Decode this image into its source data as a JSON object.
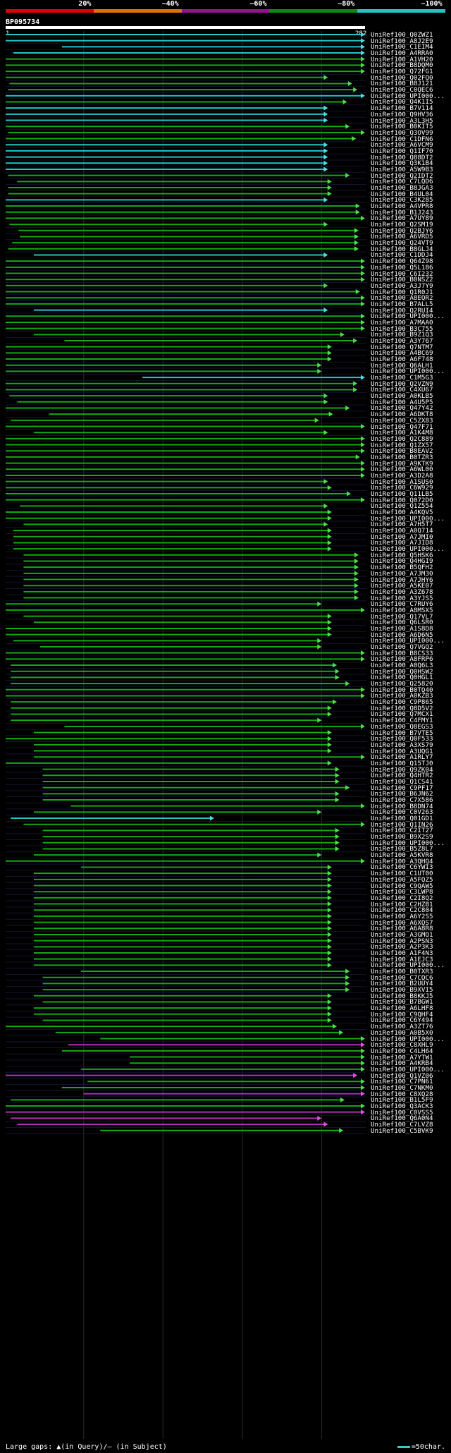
{
  "legend": {
    "segments": [
      {
        "label": "20%",
        "color": "#e00000"
      },
      {
        "label": "~40%",
        "color": "#e07000"
      },
      {
        "label": "~60%",
        "color": "#8e158e"
      },
      {
        "label": "~80%",
        "color": "#118811"
      },
      {
        "label": "~100%",
        "color": "#22c5c5"
      }
    ]
  },
  "query": {
    "id": "BP095734",
    "start": "1",
    "end": "282",
    "length": 282
  },
  "footer": {
    "gaps_text": "Large gaps: ▲(in Query)/– (in Subject)",
    "scale_text": "=50char."
  },
  "hits": [
    {
      "id": "UniRef100_Q0ZWZ1",
      "s": 1,
      "e": 282,
      "c": "c"
    },
    {
      "id": "UniRef100_A8J2E9",
      "s": 1,
      "e": 282,
      "c": "c"
    },
    {
      "id": "UniRef100_C1EIM4",
      "s": 45,
      "e": 282,
      "c": "c"
    },
    {
      "id": "UniRef100_A4RRA0",
      "s": 7,
      "e": 282,
      "c": "c"
    },
    {
      "id": "UniRef100_A1VH20",
      "s": 1,
      "e": 282,
      "c": "g"
    },
    {
      "id": "UniRef100_B8DQM0",
      "s": 1,
      "e": 282,
      "c": "g"
    },
    {
      "id": "UniRef100_Q72FG1",
      "s": 1,
      "e": 282,
      "c": "g"
    },
    {
      "id": "UniRef100_Q02FQ0",
      "s": 1,
      "e": 253,
      "c": "g"
    },
    {
      "id": "UniRef100_B8J121",
      "s": 4,
      "e": 272,
      "c": "g"
    },
    {
      "id": "UniRef100_C0QEC6",
      "s": 3,
      "e": 276,
      "c": "g"
    },
    {
      "id": "UniRef100_UPI000...",
      "s": 1,
      "e": 282,
      "c": "c"
    },
    {
      "id": "UniRef100_Q4K1I5",
      "s": 1,
      "e": 268,
      "c": "g"
    },
    {
      "id": "UniRef100_B7V114",
      "s": 1,
      "e": 253,
      "c": "c"
    },
    {
      "id": "UniRef100_Q9HV36",
      "s": 1,
      "e": 253,
      "c": "c"
    },
    {
      "id": "UniRef100_A3L3H5",
      "s": 1,
      "e": 253,
      "c": "c"
    },
    {
      "id": "UniRef100_B0KIT5",
      "s": 1,
      "e": 270,
      "c": "g"
    },
    {
      "id": "UniRef100_Q3OV99",
      "s": 3,
      "e": 282,
      "c": "g"
    },
    {
      "id": "UniRef100_C1DFN6",
      "s": 1,
      "e": 275,
      "c": "g"
    },
    {
      "id": "UniRef100_A6VCM9",
      "s": 1,
      "e": 253,
      "c": "c"
    },
    {
      "id": "UniRef100_Q1IF70",
      "s": 1,
      "e": 253,
      "c": "c"
    },
    {
      "id": "UniRef100_Q88DT2",
      "s": 1,
      "e": 253,
      "c": "c"
    },
    {
      "id": "UniRef100_Q3K1B4",
      "s": 1,
      "e": 253,
      "c": "c"
    },
    {
      "id": "UniRef100_A5W9B3",
      "s": 1,
      "e": 253,
      "c": "c"
    },
    {
      "id": "UniRef100_Q2IDT2",
      "s": 3,
      "e": 270,
      "c": "g"
    },
    {
      "id": "UniRef100_C7LQD6",
      "s": 10,
      "e": 256,
      "c": "g"
    },
    {
      "id": "UniRef100_B8JGA3",
      "s": 3,
      "e": 256,
      "c": "g"
    },
    {
      "id": "UniRef100_B4UL04",
      "s": 3,
      "e": 256,
      "c": "g"
    },
    {
      "id": "UniRef100_C3K285",
      "s": 1,
      "e": 253,
      "c": "c"
    },
    {
      "id": "UniRef100_A4VPR8",
      "s": 1,
      "e": 278,
      "c": "g"
    },
    {
      "id": "UniRef100_B1J243",
      "s": 1,
      "e": 278,
      "c": "g"
    },
    {
      "id": "UniRef100_A7UY89",
      "s": 1,
      "e": 282,
      "c": "g"
    },
    {
      "id": "UniRef100_Q2SM19",
      "s": 4,
      "e": 253,
      "c": "g"
    },
    {
      "id": "UniRef100_Q2BJY6",
      "s": 11,
      "e": 277,
      "c": "g"
    },
    {
      "id": "UniRef100_A6VRD5",
      "s": 12,
      "e": 277,
      "c": "g"
    },
    {
      "id": "UniRef100_Q24VT9",
      "s": 6,
      "e": 277,
      "c": "g"
    },
    {
      "id": "UniRef100_B8GLJ4",
      "s": 3,
      "e": 277,
      "c": "g"
    },
    {
      "id": "UniRef100_C1DDJ4",
      "s": 23,
      "e": 253,
      "c": "c"
    },
    {
      "id": "UniRef100_Q64Z98",
      "s": 1,
      "e": 282,
      "c": "g"
    },
    {
      "id": "UniRef100_Q5L186",
      "s": 1,
      "e": 282,
      "c": "g"
    },
    {
      "id": "UniRef100_C6I232",
      "s": 1,
      "e": 282,
      "c": "g"
    },
    {
      "id": "UniRef100_B0NSZ2",
      "s": 1,
      "e": 282,
      "c": "g"
    },
    {
      "id": "UniRef100_A3J7Y9",
      "s": 1,
      "e": 253,
      "c": "g"
    },
    {
      "id": "UniRef100_Q1R0J1",
      "s": 1,
      "e": 278,
      "c": "g"
    },
    {
      "id": "UniRef100_A8EQR2",
      "s": 1,
      "e": 282,
      "c": "g"
    },
    {
      "id": "UniRef100_B7ALL5",
      "s": 1,
      "e": 282,
      "c": "g"
    },
    {
      "id": "UniRef100_Q2RUI4",
      "s": 23,
      "e": 253,
      "c": "c"
    },
    {
      "id": "UniRef100_UPI000...",
      "s": 1,
      "e": 282,
      "c": "g"
    },
    {
      "id": "UniRef100_A7MAA0",
      "s": 1,
      "e": 282,
      "c": "g"
    },
    {
      "id": "UniRef100_B3C755",
      "s": 1,
      "e": 282,
      "c": "g"
    },
    {
      "id": "UniRef100_B9Z1Q3",
      "s": 23,
      "e": 266,
      "c": "g"
    },
    {
      "id": "UniRef100_A3Y767",
      "s": 47,
      "e": 276,
      "c": "g"
    },
    {
      "id": "UniRef100_Q7NTM7",
      "s": 1,
      "e": 256,
      "c": "g"
    },
    {
      "id": "UniRef100_A4BC69",
      "s": 1,
      "e": 256,
      "c": "g"
    },
    {
      "id": "UniRef100_A6F748",
      "s": 1,
      "e": 256,
      "c": "g"
    },
    {
      "id": "UniRef100_Q6ALH1",
      "s": 1,
      "e": 248,
      "c": "g"
    },
    {
      "id": "UniRef100_UPI000...",
      "s": 1,
      "e": 248,
      "c": "g"
    },
    {
      "id": "UniRef100_C1M5G3",
      "s": 108,
      "e": 282,
      "c": "c"
    },
    {
      "id": "UniRef100_Q2VZN9",
      "s": 1,
      "e": 276,
      "c": "g"
    },
    {
      "id": "UniRef100_C4XU67",
      "s": 1,
      "e": 276,
      "c": "g"
    },
    {
      "id": "UniRef100_A0KLB5",
      "s": 4,
      "e": 253,
      "c": "g"
    },
    {
      "id": "UniRef100_A4U5P5",
      "s": 10,
      "e": 253,
      "c": "g"
    },
    {
      "id": "UniRef100_Q47Y42",
      "s": 1,
      "e": 270,
      "c": "g"
    },
    {
      "id": "UniRef100_A6DKT8",
      "s": 35,
      "e": 257,
      "c": "g"
    },
    {
      "id": "UniRef100_C5ZX83",
      "s": 5,
      "e": 246,
      "c": "g"
    },
    {
      "id": "UniRef100_Q47F71",
      "s": 1,
      "e": 282,
      "c": "g"
    },
    {
      "id": "UniRef100_A1K4M8",
      "s": 23,
      "e": 253,
      "c": "g"
    },
    {
      "id": "UniRef100_Q2C889",
      "s": 1,
      "e": 282,
      "c": "g"
    },
    {
      "id": "UniRef100_Q1ZX57",
      "s": 1,
      "e": 282,
      "c": "g"
    },
    {
      "id": "UniRef100_B8EAV2",
      "s": 1,
      "e": 282,
      "c": "g"
    },
    {
      "id": "UniRef100_B0TZR3",
      "s": 1,
      "e": 278,
      "c": "g"
    },
    {
      "id": "UniRef100_A9KTK9",
      "s": 1,
      "e": 282,
      "c": "g"
    },
    {
      "id": "UniRef100_A6WL00",
      "s": 1,
      "e": 282,
      "c": "g"
    },
    {
      "id": "UniRef100_A3D2A8",
      "s": 1,
      "e": 282,
      "c": "g"
    },
    {
      "id": "UniRef100_A1SUS0",
      "s": 1,
      "e": 253,
      "c": "g"
    },
    {
      "id": "UniRef100_C6W929",
      "s": 1,
      "e": 256,
      "c": "g"
    },
    {
      "id": "UniRef100_Q11LB5",
      "s": 1,
      "e": 271,
      "c": "g"
    },
    {
      "id": "UniRef100_Q072D0",
      "s": 1,
      "e": 282,
      "c": "g"
    },
    {
      "id": "UniRef100_Q1Z554",
      "s": 12,
      "e": 253,
      "c": "g"
    },
    {
      "id": "UniRef100_A4KQV5",
      "s": 1,
      "e": 256,
      "c": "g"
    },
    {
      "id": "UniRef100_UPI000...",
      "s": 1,
      "e": 256,
      "c": "g"
    },
    {
      "id": "UniRef100_A7H5T7",
      "s": 15,
      "e": 253,
      "c": "g"
    },
    {
      "id": "UniRef100_A0Q714",
      "s": 7,
      "e": 256,
      "c": "g"
    },
    {
      "id": "UniRef100_A7JMI0",
      "s": 7,
      "e": 256,
      "c": "g"
    },
    {
      "id": "UniRef100_A7JID8",
      "s": 7,
      "e": 256,
      "c": "g"
    },
    {
      "id": "UniRef100_UPI000...",
      "s": 7,
      "e": 256,
      "c": "g"
    },
    {
      "id": "UniRef100_Q5HSK6",
      "s": 15,
      "e": 277,
      "c": "g"
    },
    {
      "id": "UniRef100_Q4HGI9",
      "s": 15,
      "e": 277,
      "c": "g"
    },
    {
      "id": "UniRef100_B5QFH2",
      "s": 15,
      "e": 277,
      "c": "g"
    },
    {
      "id": "UniRef100_A7JM30",
      "s": 15,
      "e": 277,
      "c": "g"
    },
    {
      "id": "UniRef100_A7JHY6",
      "s": 15,
      "e": 277,
      "c": "g"
    },
    {
      "id": "UniRef100_A5KE07",
      "s": 15,
      "e": 277,
      "c": "g"
    },
    {
      "id": "UniRef100_A3Z678",
      "s": 15,
      "e": 277,
      "c": "g"
    },
    {
      "id": "UniRef100_A3YJS5",
      "s": 15,
      "e": 277,
      "c": "g"
    },
    {
      "id": "UniRef100_C7RUY6",
      "s": 1,
      "e": 248,
      "c": "g"
    },
    {
      "id": "UniRef100_A8MSX5",
      "s": 1,
      "e": 282,
      "c": "g"
    },
    {
      "id": "UniRef100_Q17VL7",
      "s": 15,
      "e": 256,
      "c": "g"
    },
    {
      "id": "UniRef100_Q6LSR0",
      "s": 23,
      "e": 256,
      "c": "g"
    },
    {
      "id": "UniRef100_A1S8D8",
      "s": 1,
      "e": 256,
      "c": "g"
    },
    {
      "id": "UniRef100_A6D6N5",
      "s": 1,
      "e": 256,
      "c": "g"
    },
    {
      "id": "UniRef100_UPI000...",
      "s": 7,
      "e": 248,
      "c": "g"
    },
    {
      "id": "UniRef100_Q7VGQ2",
      "s": 28,
      "e": 248,
      "c": "g"
    },
    {
      "id": "UniRef100_B8CS33",
      "s": 1,
      "e": 282,
      "c": "g"
    },
    {
      "id": "UniRef100_A8FRP6",
      "s": 1,
      "e": 282,
      "c": "g"
    },
    {
      "id": "UniRef100_A0Q6L3",
      "s": 5,
      "e": 260,
      "c": "g"
    },
    {
      "id": "UniRef100_Q0HSW2",
      "s": 5,
      "e": 262,
      "c": "g"
    },
    {
      "id": "UniRef100_Q0HGL1",
      "s": 5,
      "e": 262,
      "c": "g"
    },
    {
      "id": "UniRef100_Q25820",
      "s": 5,
      "e": 270,
      "c": "g"
    },
    {
      "id": "UniRef100_B0TQ40",
      "s": 1,
      "e": 282,
      "c": "g"
    },
    {
      "id": "UniRef100_A0KZB3",
      "s": 1,
      "e": 282,
      "c": "g"
    },
    {
      "id": "UniRef100_C9P865",
      "s": 5,
      "e": 260,
      "c": "g"
    },
    {
      "id": "UniRef100_Q8D5V2",
      "s": 5,
      "e": 256,
      "c": "g"
    },
    {
      "id": "UniRef100_Q7MCX1",
      "s": 5,
      "e": 256,
      "c": "g"
    },
    {
      "id": "UniRef100_C4FMY1",
      "s": 5,
      "e": 248,
      "c": "g"
    },
    {
      "id": "UniRef100_Q8EGS3",
      "s": 47,
      "e": 282,
      "c": "g"
    },
    {
      "id": "UniRef100_B7VTE5",
      "s": 23,
      "e": 256,
      "c": "g"
    },
    {
      "id": "UniRef100_Q0F533",
      "s": 1,
      "e": 256,
      "c": "g"
    },
    {
      "id": "UniRef100_A3XS79",
      "s": 23,
      "e": 256,
      "c": "g"
    },
    {
      "id": "UniRef100_A3UQG1",
      "s": 23,
      "e": 256,
      "c": "g"
    },
    {
      "id": "UniRef100_A1RLY7",
      "s": 23,
      "e": 282,
      "c": "g"
    },
    {
      "id": "UniRef100_Q15TJ0",
      "s": 1,
      "e": 256,
      "c": "g"
    },
    {
      "id": "UniRef100_Q9ZK04",
      "s": 30,
      "e": 262,
      "c": "g"
    },
    {
      "id": "UniRef100_Q4HTR2",
      "s": 30,
      "e": 262,
      "c": "g"
    },
    {
      "id": "UniRef100_Q1CS41",
      "s": 30,
      "e": 262,
      "c": "g"
    },
    {
      "id": "UniRef100_C9PF17",
      "s": 30,
      "e": 270,
      "c": "g"
    },
    {
      "id": "UniRef100_B6JN62",
      "s": 30,
      "e": 262,
      "c": "g"
    },
    {
      "id": "UniRef100_C7X586",
      "s": 30,
      "e": 262,
      "c": "g"
    },
    {
      "id": "UniRef100_B8DN74",
      "s": 52,
      "e": 282,
      "c": "g"
    },
    {
      "id": "UniRef100_C0V263",
      "s": 23,
      "e": 248,
      "c": "g"
    },
    {
      "id": "UniRef100_Q01GD1",
      "s": 5,
      "e": 164,
      "c": "c"
    },
    {
      "id": "UniRef100_Q1IN26",
      "s": 15,
      "e": 282,
      "c": "g"
    },
    {
      "id": "UniRef100_C2IT27",
      "s": 30,
      "e": 262,
      "c": "g"
    },
    {
      "id": "UniRef100_B9X2S9",
      "s": 30,
      "e": 262,
      "c": "g"
    },
    {
      "id": "UniRef100_UPI000...",
      "s": 30,
      "e": 262,
      "c": "g"
    },
    {
      "id": "UniRef100_B5Z8L7",
      "s": 30,
      "e": 262,
      "c": "g"
    },
    {
      "id": "UniRef100_A5KVR8",
      "s": 23,
      "e": 248,
      "c": "g"
    },
    {
      "id": "UniRef100_A3QHQ4",
      "s": 1,
      "e": 282,
      "c": "g"
    },
    {
      "id": "UniRef100_C6YWI3",
      "s": 60,
      "e": 256,
      "c": "g"
    },
    {
      "id": "UniRef100_C1UT00",
      "s": 23,
      "e": 256,
      "c": "g"
    },
    {
      "id": "UniRef100_A5FQZ5",
      "s": 23,
      "e": 256,
      "c": "g"
    },
    {
      "id": "UniRef100_C9QAW5",
      "s": 23,
      "e": 256,
      "c": "g"
    },
    {
      "id": "UniRef100_C3LWP8",
      "s": 23,
      "e": 256,
      "c": "g"
    },
    {
      "id": "UniRef100_C2I8Q2",
      "s": 23,
      "e": 256,
      "c": "g"
    },
    {
      "id": "UniRef100_C2HZB1",
      "s": 23,
      "e": 256,
      "c": "g"
    },
    {
      "id": "UniRef100_C2C804",
      "s": 23,
      "e": 256,
      "c": "g"
    },
    {
      "id": "UniRef100_A6Y2S5",
      "s": 23,
      "e": 256,
      "c": "g"
    },
    {
      "id": "UniRef100_A6XQS7",
      "s": 23,
      "e": 256,
      "c": "g"
    },
    {
      "id": "UniRef100_A6A8R8",
      "s": 23,
      "e": 256,
      "c": "g"
    },
    {
      "id": "UniRef100_A3GMQ1",
      "s": 23,
      "e": 256,
      "c": "g"
    },
    {
      "id": "UniRef100_A2PSN3",
      "s": 23,
      "e": 256,
      "c": "g"
    },
    {
      "id": "UniRef100_A2P3K3",
      "s": 23,
      "e": 256,
      "c": "g"
    },
    {
      "id": "UniRef100_A1F4N3",
      "s": 23,
      "e": 256,
      "c": "g"
    },
    {
      "id": "UniRef100_A1EJC3",
      "s": 23,
      "e": 256,
      "c": "g"
    },
    {
      "id": "UniRef100_UPI000...",
      "s": 23,
      "e": 256,
      "c": "g"
    },
    {
      "id": "UniRef100_B0TXR3",
      "s": 60,
      "e": 270,
      "c": "g"
    },
    {
      "id": "UniRef100_C7CQC6",
      "s": 30,
      "e": 270,
      "c": "g"
    },
    {
      "id": "UniRef100_B2UUY4",
      "s": 30,
      "e": 270,
      "c": "g"
    },
    {
      "id": "UniRef100_B9XVI5",
      "s": 30,
      "e": 270,
      "c": "g"
    },
    {
      "id": "UniRef100_B8KKJ5",
      "s": 23,
      "e": 256,
      "c": "g"
    },
    {
      "id": "UniRef100_B7BGW1",
      "s": 30,
      "e": 256,
      "c": "g"
    },
    {
      "id": "UniRef100_A6LHF8",
      "s": 23,
      "e": 256,
      "c": "g"
    },
    {
      "id": "UniRef100_C9QHF4",
      "s": 23,
      "e": 256,
      "c": "g"
    },
    {
      "id": "UniRef100_C6Y494",
      "s": 30,
      "e": 256,
      "c": "g"
    },
    {
      "id": "UniRef100_A3ZT76",
      "s": 1,
      "e": 260,
      "c": "g"
    },
    {
      "id": "UniRef100_A0B5X0",
      "s": 40,
      "e": 265,
      "c": "g"
    },
    {
      "id": "UniRef100_UPI000...",
      "s": 75,
      "e": 282,
      "c": "g"
    },
    {
      "id": "UniRef100_C8XHL9",
      "s": 50,
      "e": 282,
      "c": "m"
    },
    {
      "id": "UniRef100_C4LH64",
      "s": 45,
      "e": 282,
      "c": "g"
    },
    {
      "id": "UniRef100_A7YTW1",
      "s": 98,
      "e": 282,
      "c": "g"
    },
    {
      "id": "UniRef100_A4KRB4",
      "s": 98,
      "e": 282,
      "c": "g"
    },
    {
      "id": "UniRef100_UPI000...",
      "s": 60,
      "e": 282,
      "c": "g"
    },
    {
      "id": "UniRef100_Q1VZ06",
      "s": 1,
      "e": 276,
      "c": "m"
    },
    {
      "id": "UniRef100_C7PN61",
      "s": 65,
      "e": 282,
      "c": "g"
    },
    {
      "id": "UniRef100_C7NKM0",
      "s": 45,
      "e": 282,
      "c": "g"
    },
    {
      "id": "UniRef100_C8XQ28",
      "s": 62,
      "e": 282,
      "c": "m"
    },
    {
      "id": "UniRef100_B1L5F9",
      "s": 5,
      "e": 266,
      "c": "g"
    },
    {
      "id": "UniRef100_Q3ACK3",
      "s": 1,
      "e": 282,
      "c": "g"
    },
    {
      "id": "UniRef100_C0VSS5",
      "s": 1,
      "e": 282,
      "c": "m"
    },
    {
      "id": "UniRef100_Q6A0N4",
      "s": 5,
      "e": 248,
      "c": "m"
    },
    {
      "id": "UniRef100_C7LVZ8",
      "s": 10,
      "e": 253,
      "c": "m"
    },
    {
      "id": "UniRef100_C5BVK9",
      "s": 75,
      "e": 265,
      "c": "g"
    }
  ],
  "colors": {
    "c": "#22c5c5",
    "g": "#11aa11",
    "m": "#b22db2",
    "arrow_green": "#4ddd4d",
    "arrow_cyan": "#4ddddd",
    "arrow_magenta": "#dd55dd"
  }
}
